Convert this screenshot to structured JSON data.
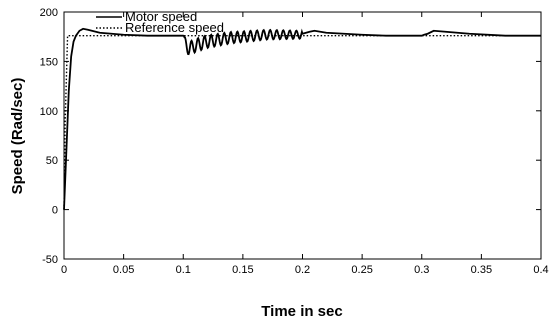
{
  "chart_data": {
    "type": "line",
    "xlabel": "Time in sec",
    "ylabel": "Speed (Rad/sec)",
    "xlim": [
      0,
      0.4
    ],
    "ylim": [
      -50,
      200
    ],
    "xticks": [
      "0",
      "0.05",
      "0.1",
      "0.15",
      "0.2",
      "0.25",
      "0.3",
      "0.35",
      "0.4"
    ],
    "yticks": [
      "-50",
      "0",
      "50",
      "100",
      "150",
      "200"
    ],
    "grid": false,
    "legend_position": "top-left",
    "series": [
      {
        "name": "Motor speed",
        "style": "solid",
        "color": "#000000",
        "x": [
          0,
          0.002,
          0.004,
          0.006,
          0.008,
          0.01,
          0.013,
          0.016,
          0.02,
          0.03,
          0.05,
          0.07,
          0.09,
          0.099,
          0.1,
          0.101,
          0.105,
          0.11,
          0.115,
          0.12,
          0.13,
          0.14,
          0.15,
          0.16,
          0.17,
          0.18,
          0.19,
          0.198,
          0.2,
          0.203,
          0.206,
          0.21,
          0.22,
          0.25,
          0.27,
          0.3,
          0.302,
          0.305,
          0.31,
          0.32,
          0.34,
          0.37,
          0.4
        ],
        "y": [
          0,
          60,
          120,
          155,
          170,
          176,
          181,
          183,
          182,
          179,
          177,
          176,
          176,
          176,
          176,
          168,
          163,
          166,
          168,
          170,
          172,
          174,
          175,
          176,
          177,
          177,
          177,
          177,
          178,
          179,
          180,
          181,
          179,
          177,
          176,
          176,
          177,
          178,
          181,
          180,
          178,
          176,
          176
        ],
        "oscillation": {
          "x_range": [
            0.1,
            0.2
          ],
          "period": 0.0055,
          "amplitude_start": 7,
          "amplitude_end": 4
        }
      },
      {
        "name": "Reference speed",
        "style": "dotted",
        "color": "#000000",
        "x": [
          0,
          0.001,
          0.003,
          0.4
        ],
        "y": [
          0,
          90,
          176,
          176
        ]
      }
    ]
  }
}
